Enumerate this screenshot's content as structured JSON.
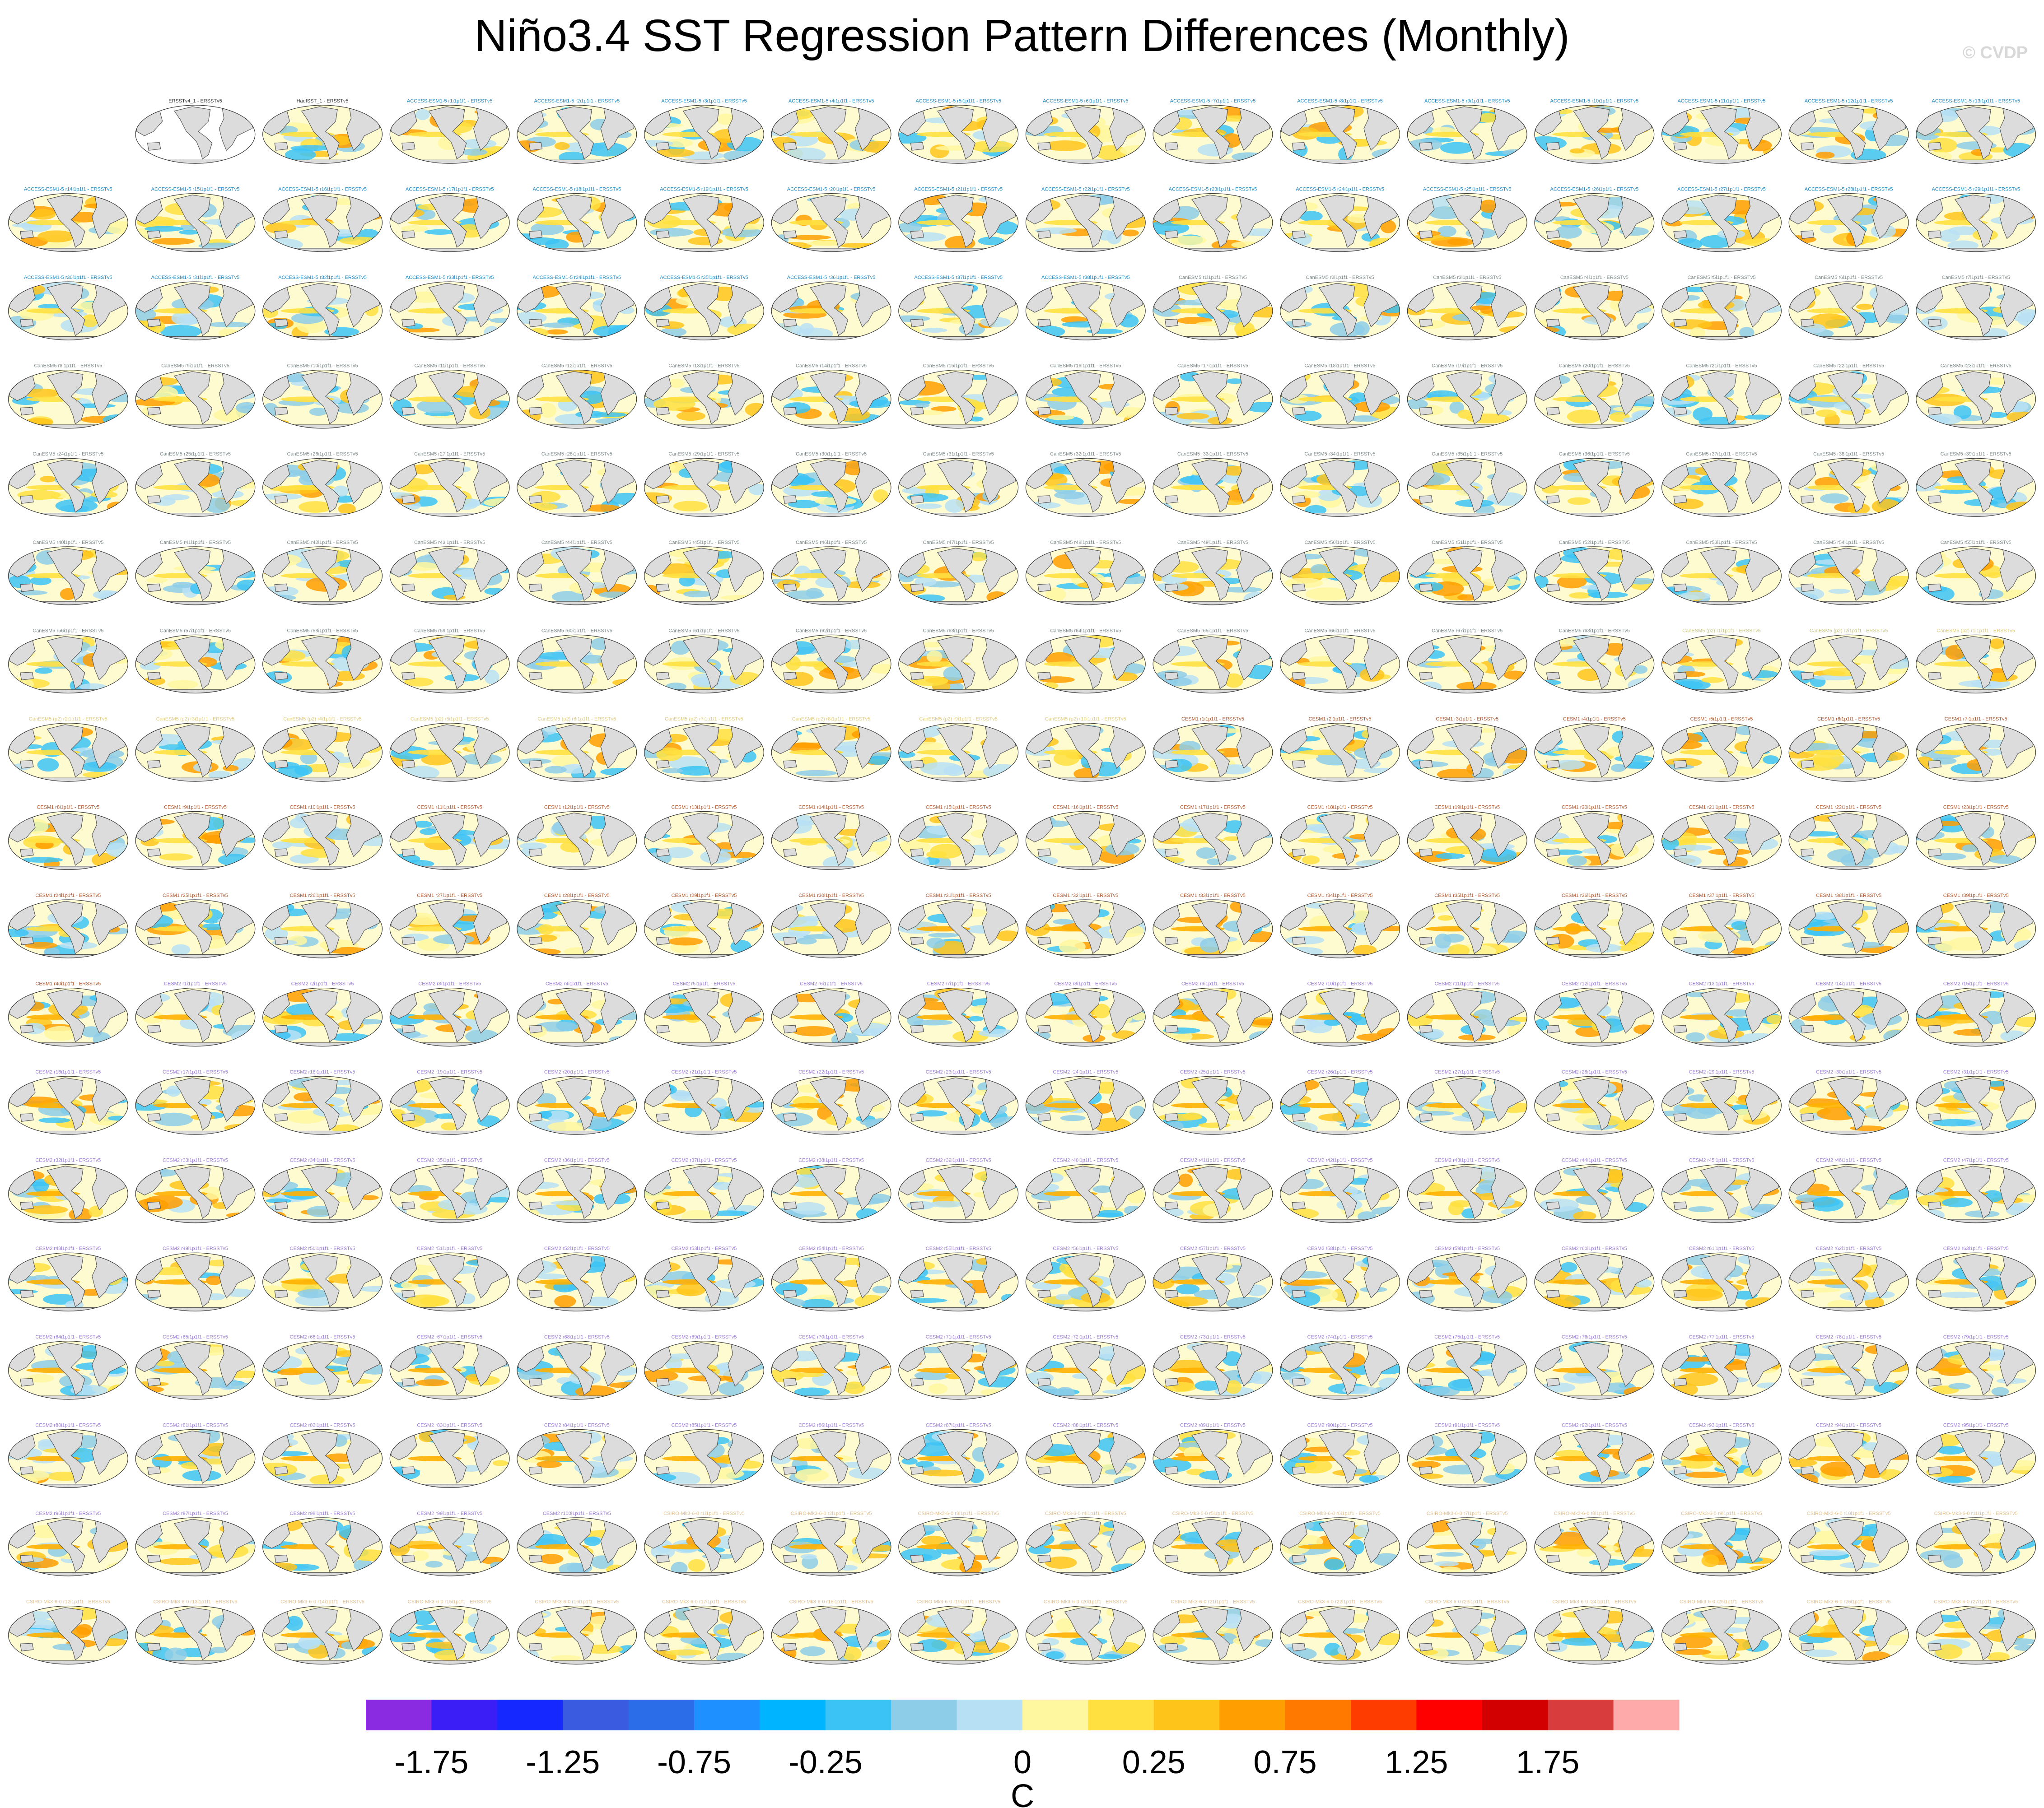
{
  "title": "Niño3.4 SST Regression Pattern Differences (Monthly)",
  "watermark": "© CVDP",
  "colors": {
    "ocean_land": "#dcdcdc",
    "coast": "#555555"
  },
  "panels": {
    "rows": 18,
    "cols": 16,
    "first_empty_cells": 1,
    "reference_panels": [
      "ERSSTv4_1 - ERSSTv5",
      "HadISST_1 - ERSSTv5"
    ],
    "groups": [
      {
        "model": "ACCESS-ESM1-5",
        "count": 38,
        "label_color": "#1a8ac8"
      },
      {
        "model": "CanESM5",
        "count": 68,
        "label_color": "#7e8b8b"
      },
      {
        "model": "CanESM5 (p2)",
        "count": 2,
        "label_color": "#c8c887"
      },
      {
        "model": "CanESM5 (p2)",
        "count": 10,
        "label_color": "#e0cc7a"
      },
      {
        "model": "CESM1",
        "count": 40,
        "label_color": "#b0552a"
      },
      {
        "model": "CESM2",
        "count": 100,
        "label_color": "#9a7ad8"
      },
      {
        "model": "CSIRO-Mk3-6-0",
        "count": 27,
        "label_color": "#e0c090"
      }
    ]
  },
  "chart_data": {
    "type": "heatmap",
    "title": "Niño3.4 SST Regression Pattern Differences (Monthly)",
    "units": "C",
    "colorbar": {
      "tick_labels": [
        "-1.75",
        "-1.25",
        "-0.75",
        "-0.25",
        "0",
        "0.25",
        "0.75",
        "1.25",
        "1.75"
      ],
      "levels": [
        -2.0,
        -1.75,
        -1.5,
        -1.25,
        -1.0,
        -0.75,
        -0.5,
        -0.25,
        -0.1,
        0,
        0.1,
        0.25,
        0.5,
        0.75,
        1.0,
        1.25,
        1.5,
        1.75,
        2.0
      ],
      "colors": [
        "#8a2be2",
        "#3a1ef5",
        "#1428ff",
        "#3a5ae0",
        "#2b6de8",
        "#1e90ff",
        "#00b4ff",
        "#3cc3f5",
        "#8ecde8",
        "#b8e0f5",
        "#fff7a0",
        "#ffe040",
        "#ffc41a",
        "#ff9e00",
        "#ff7800",
        "#ff3c00",
        "#ff0000",
        "#d20000",
        "#d83c3c",
        "#ffaaaa"
      ]
    }
  }
}
